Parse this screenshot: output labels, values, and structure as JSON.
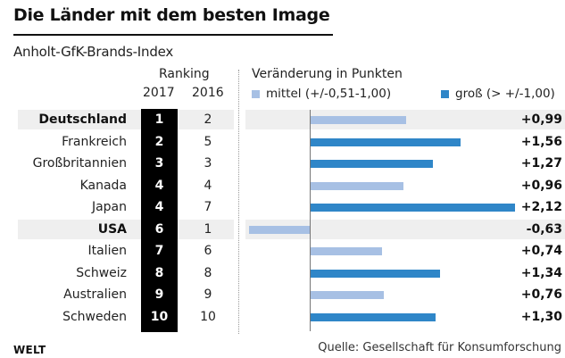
{
  "chart_data": {
    "type": "bar",
    "orientation": "horizontal",
    "title": "Die Länder mit dem besten Image",
    "subtitle": "Anholt-GfK-Brands-Index",
    "ranking_header": "Ranking",
    "year_labels": [
      "2017",
      "2016"
    ],
    "change_header": "Veränderung in Punkten",
    "legend": [
      {
        "label": "mittel (+/-0,51-1,00)",
        "color": "#a7c0e4"
      },
      {
        "label": "groß (> +/-1,00)",
        "color": "#2f86c8"
      }
    ],
    "categories": [
      "Deutschland",
      "Frankreich",
      "Großbritannien",
      "Kanada",
      "Japan",
      "USA",
      "Italien",
      "Schweiz",
      "Australien",
      "Schweden"
    ],
    "highlighted": [
      "Deutschland",
      "USA"
    ],
    "rank_2017": [
      "1",
      "2",
      "3",
      "4",
      "4",
      "6",
      "7",
      "8",
      "9",
      "10"
    ],
    "rank_2016": [
      "2",
      "5",
      "3",
      "4",
      "7",
      "1",
      "6",
      "8",
      "9",
      "10"
    ],
    "values": [
      0.99,
      1.56,
      1.27,
      0.96,
      2.12,
      -0.63,
      0.74,
      1.34,
      0.76,
      1.3
    ],
    "value_labels": [
      "+0,99",
      "+1,56",
      "+1,27",
      "+0,96",
      "+2,12",
      "-0,63",
      "+0,74",
      "+1,34",
      "+0,76",
      "+1,30"
    ],
    "xlim": [
      -0.63,
      2.12
    ],
    "threshold_gross": 1.0
  },
  "footer": {
    "logo": "WELT",
    "source": "Quelle: Gesellschaft für Konsumforschung"
  }
}
